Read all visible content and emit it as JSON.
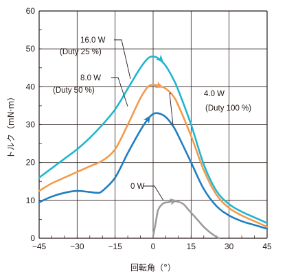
{
  "chart_data": {
    "type": "line",
    "xlabel": "回転角（°）",
    "ylabel": "トルク（mN·m）",
    "xlim": [
      -45,
      45
    ],
    "ylim": [
      0,
      60
    ],
    "xticks": [
      -45,
      -30,
      -15,
      0,
      15,
      30,
      45
    ],
    "yticks": [
      0,
      10,
      20,
      30,
      40,
      50,
      60
    ],
    "xtick_labels": [
      "−45",
      "−30",
      "−15",
      "0",
      "15",
      "30",
      "45"
    ],
    "ytick_labels": [
      "0",
      "10",
      "20",
      "30",
      "40",
      "50",
      "60"
    ],
    "grid": true,
    "series": [
      {
        "name": "16.0W (Duty 25%)",
        "color": "#1EB6CF",
        "x": [
          -45,
          -40,
          -35,
          -30,
          -25,
          -20,
          -15,
          -10,
          -5,
          -2,
          0,
          2,
          5,
          8,
          10,
          15,
          20,
          25,
          30,
          35,
          40,
          45
        ],
        "y": [
          16,
          18.5,
          21,
          23.5,
          26.5,
          30,
          34,
          39.5,
          45,
          47.5,
          48,
          47.5,
          45.5,
          42,
          39,
          30,
          19.5,
          12.5,
          9,
          7,
          5.5,
          4
        ]
      },
      {
        "name": "8.0W (Duty 50%)",
        "color": "#F39A4C",
        "x": [
          -45,
          -40,
          -35,
          -30,
          -25,
          -20,
          -15,
          -10,
          -5,
          -2,
          0,
          2,
          5,
          8,
          10,
          15,
          20,
          25,
          30,
          35,
          40,
          45
        ],
        "y": [
          12.5,
          14.5,
          16,
          17.5,
          19,
          20.5,
          23.5,
          30,
          37,
          40,
          40.5,
          40.3,
          39.5,
          37.5,
          35,
          27,
          18,
          11.5,
          8,
          6,
          4.5,
          3
        ]
      },
      {
        "name": "4.0W (Duty 100%)",
        "color": "#1F7DC1",
        "x": [
          -45,
          -40,
          -35,
          -30,
          -25,
          -22,
          -20,
          -15,
          -10,
          -5,
          -2,
          0,
          2,
          5,
          8,
          10,
          15,
          20,
          25,
          30,
          35,
          40,
          45
        ],
        "y": [
          9.5,
          11,
          12,
          12.5,
          12.2,
          12,
          12.5,
          16,
          22.5,
          28.5,
          31.5,
          32.8,
          33,
          32,
          29.5,
          27,
          20,
          13,
          8.5,
          6,
          4.5,
          3.5,
          2.5
        ]
      },
      {
        "name": "0W",
        "color": "#9C9C9C",
        "x": [
          0,
          1,
          2,
          4,
          6,
          8,
          10,
          12,
          14,
          16,
          18,
          20,
          22,
          24,
          26
        ],
        "y": [
          0.5,
          4,
          7.5,
          9.2,
          9.5,
          9.8,
          9.6,
          9,
          7.5,
          6,
          4.5,
          3,
          1.8,
          0.8,
          0
        ]
      }
    ],
    "annotations": [
      {
        "lines": [
          "16.0 W",
          "(Duty 25 %)"
        ]
      },
      {
        "lines": [
          "8.0 W",
          "(Duty 50 %)"
        ]
      },
      {
        "lines": [
          "4.0 W",
          "(Duty 100 %)"
        ]
      },
      {
        "lines": [
          "0 W"
        ]
      }
    ]
  }
}
